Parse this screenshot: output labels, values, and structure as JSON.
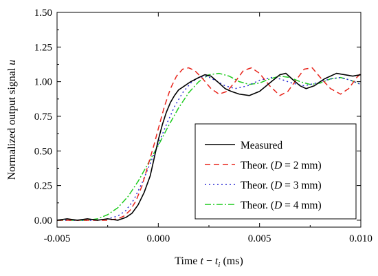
{
  "chart_data": {
    "type": "line",
    "xlabel": "Time t − t_i (ms)",
    "ylabel": "Normalized output signal u",
    "xlim": [
      -0.005,
      0.01
    ],
    "ylim": [
      -0.05,
      1.5
    ],
    "x_ticks": [
      "-0.005",
      "0.000",
      "0.005",
      "0.010"
    ],
    "x_tick_values": [
      -0.005,
      0.0,
      0.005,
      0.01
    ],
    "y_ticks": [
      "0.00",
      "0.25",
      "0.50",
      "0.75",
      "1.00",
      "1.25",
      "1.50"
    ],
    "y_tick_values": [
      0.0,
      0.25,
      0.5,
      0.75,
      1.0,
      1.25,
      1.5
    ],
    "grid": false,
    "legend_position": "lower-right",
    "series": [
      {
        "name": "Measured",
        "color": "#000000",
        "dash": "solid",
        "points": [
          [
            -0.005,
            0.0
          ],
          [
            -0.0045,
            0.01
          ],
          [
            -0.004,
            0.0
          ],
          [
            -0.0035,
            0.01
          ],
          [
            -0.003,
            0.0
          ],
          [
            -0.0025,
            0.01
          ],
          [
            -0.002,
            0.0
          ],
          [
            -0.0016,
            0.02
          ],
          [
            -0.0013,
            0.05
          ],
          [
            -0.001,
            0.11
          ],
          [
            -0.0007,
            0.2
          ],
          [
            -0.0004,
            0.32
          ],
          [
            -0.0002,
            0.45
          ],
          [
            0.0,
            0.58
          ],
          [
            0.0002,
            0.69
          ],
          [
            0.0004,
            0.78
          ],
          [
            0.0006,
            0.85
          ],
          [
            0.0008,
            0.9
          ],
          [
            0.001,
            0.94
          ],
          [
            0.0013,
            0.97
          ],
          [
            0.0016,
            1.0
          ],
          [
            0.002,
            1.03
          ],
          [
            0.0023,
            1.05
          ],
          [
            0.0026,
            1.04
          ],
          [
            0.003,
            0.99
          ],
          [
            0.0033,
            0.95
          ],
          [
            0.0036,
            0.93
          ],
          [
            0.004,
            0.91
          ],
          [
            0.0045,
            0.9
          ],
          [
            0.005,
            0.93
          ],
          [
            0.0055,
            0.99
          ],
          [
            0.006,
            1.05
          ],
          [
            0.0063,
            1.06
          ],
          [
            0.0066,
            1.02
          ],
          [
            0.007,
            0.97
          ],
          [
            0.0073,
            0.95
          ],
          [
            0.0077,
            0.97
          ],
          [
            0.0082,
            1.02
          ],
          [
            0.0088,
            1.06
          ],
          [
            0.0092,
            1.05
          ],
          [
            0.0096,
            1.04
          ],
          [
            0.01,
            1.05
          ]
        ]
      },
      {
        "name": "Theor. (D = 2 mm)",
        "legend_prefix": "Theor. (",
        "legend_var": "D",
        "legend_suffix": " = 2 mm)",
        "color": "#e8251c",
        "dash": "8,5",
        "points": [
          [
            -0.005,
            0.0
          ],
          [
            -0.0025,
            0.0
          ],
          [
            -0.002,
            0.01
          ],
          [
            -0.0017,
            0.03
          ],
          [
            -0.0014,
            0.07
          ],
          [
            -0.0011,
            0.14
          ],
          [
            -0.0008,
            0.25
          ],
          [
            -0.0005,
            0.4
          ],
          [
            -0.0002,
            0.55
          ],
          [
            0.0,
            0.66
          ],
          [
            0.0003,
            0.82
          ],
          [
            0.0006,
            0.95
          ],
          [
            0.0009,
            1.04
          ],
          [
            0.0012,
            1.09
          ],
          [
            0.0015,
            1.1
          ],
          [
            0.0018,
            1.08
          ],
          [
            0.0022,
            1.02
          ],
          [
            0.0026,
            0.95
          ],
          [
            0.003,
            0.91
          ],
          [
            0.0034,
            0.93
          ],
          [
            0.0038,
            1.0
          ],
          [
            0.0042,
            1.08
          ],
          [
            0.0046,
            1.1
          ],
          [
            0.005,
            1.06
          ],
          [
            0.0055,
            0.97
          ],
          [
            0.006,
            0.9
          ],
          [
            0.0064,
            0.93
          ],
          [
            0.0068,
            1.01
          ],
          [
            0.0072,
            1.09
          ],
          [
            0.0076,
            1.1
          ],
          [
            0.008,
            1.03
          ],
          [
            0.0085,
            0.95
          ],
          [
            0.009,
            0.91
          ],
          [
            0.0094,
            0.95
          ],
          [
            0.0098,
            1.03
          ],
          [
            0.01,
            1.06
          ]
        ]
      },
      {
        "name": "Theor. (D = 3 mm)",
        "legend_prefix": "Theor. (",
        "legend_var": "D",
        "legend_suffix": " = 3 mm)",
        "color": "#2a2ad4",
        "dash": "2,4",
        "points": [
          [
            -0.005,
            0.0
          ],
          [
            -0.003,
            0.0
          ],
          [
            -0.0025,
            0.01
          ],
          [
            -0.002,
            0.03
          ],
          [
            -0.0016,
            0.07
          ],
          [
            -0.0012,
            0.15
          ],
          [
            -0.0008,
            0.27
          ],
          [
            -0.0004,
            0.41
          ],
          [
            0.0,
            0.55
          ],
          [
            0.0004,
            0.69
          ],
          [
            0.0008,
            0.82
          ],
          [
            0.0012,
            0.92
          ],
          [
            0.0016,
            0.99
          ],
          [
            0.002,
            1.03
          ],
          [
            0.0024,
            1.04
          ],
          [
            0.0028,
            1.01
          ],
          [
            0.0033,
            0.97
          ],
          [
            0.0038,
            0.95
          ],
          [
            0.0044,
            0.97
          ],
          [
            0.005,
            1.01
          ],
          [
            0.0056,
            1.03
          ],
          [
            0.006,
            1.02
          ],
          [
            0.0066,
            0.99
          ],
          [
            0.0072,
            0.97
          ],
          [
            0.0078,
            0.99
          ],
          [
            0.0085,
            1.02
          ],
          [
            0.009,
            1.03
          ],
          [
            0.0095,
            1.01
          ],
          [
            0.01,
            0.98
          ]
        ]
      },
      {
        "name": "Theor. (D = 4 mm)",
        "legend_prefix": "Theor. (",
        "legend_var": "D",
        "legend_suffix": " = 4 mm)",
        "color": "#1fcc1f",
        "dash": "9,3,2,3",
        "points": [
          [
            -0.005,
            0.0
          ],
          [
            -0.0035,
            0.0
          ],
          [
            -0.003,
            0.01
          ],
          [
            -0.0025,
            0.04
          ],
          [
            -0.002,
            0.09
          ],
          [
            -0.0015,
            0.17
          ],
          [
            -0.001,
            0.28
          ],
          [
            -0.0005,
            0.41
          ],
          [
            0.0,
            0.54
          ],
          [
            0.0005,
            0.68
          ],
          [
            0.001,
            0.81
          ],
          [
            0.0015,
            0.92
          ],
          [
            0.002,
            1.0
          ],
          [
            0.0025,
            1.05
          ],
          [
            0.003,
            1.06
          ],
          [
            0.0035,
            1.04
          ],
          [
            0.004,
            1.0
          ],
          [
            0.0045,
            0.98
          ],
          [
            0.005,
            0.99
          ],
          [
            0.0055,
            1.02
          ],
          [
            0.006,
            1.04
          ],
          [
            0.0065,
            1.03
          ],
          [
            0.007,
            1.0
          ],
          [
            0.0075,
            0.98
          ],
          [
            0.008,
            0.99
          ],
          [
            0.0085,
            1.02
          ],
          [
            0.009,
            1.03
          ],
          [
            0.0095,
            1.01
          ],
          [
            0.01,
            0.98
          ]
        ]
      }
    ]
  }
}
